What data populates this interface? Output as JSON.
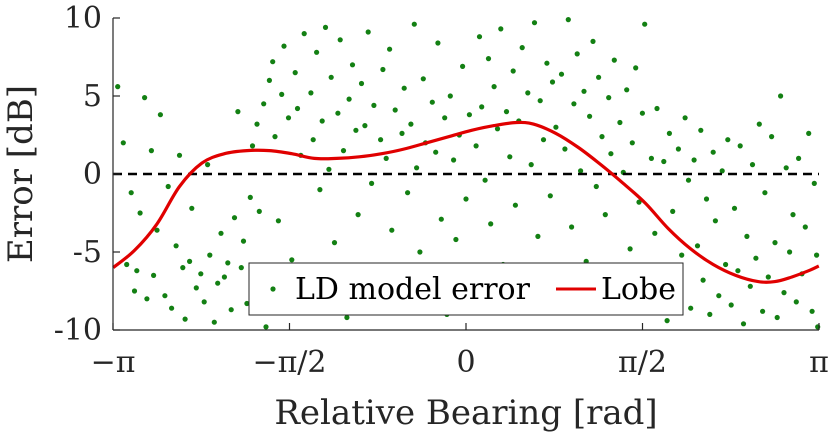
{
  "chart_data": {
    "type": "scatter",
    "xlabel": "Relative Bearing [rad]",
    "ylabel": "Error [dB]",
    "xlim": [
      -3.14159,
      3.14159
    ],
    "ylim": [
      -10,
      10
    ],
    "x_ticks": [
      {
        "value": -3.14159,
        "label": "−π"
      },
      {
        "value": -1.5708,
        "label": "−π/2"
      },
      {
        "value": 0,
        "label": "0"
      },
      {
        "value": 1.5708,
        "label": "π/2"
      },
      {
        "value": 3.14159,
        "label": "π"
      }
    ],
    "y_ticks": [
      {
        "value": 10,
        "label": "10"
      },
      {
        "value": 5,
        "label": "5"
      },
      {
        "value": 0,
        "label": "0"
      },
      {
        "value": -5,
        "label": "-5"
      },
      {
        "value": -10,
        "label": "-10"
      }
    ],
    "legend": {
      "position": "bottom-center",
      "entries": [
        {
          "label": "LD model error",
          "kind": "marker",
          "color": "#138013"
        },
        {
          "label": "Lobe",
          "kind": "line",
          "color": "#e00000"
        }
      ]
    },
    "reference_line": {
      "y": 0,
      "style": "dashed",
      "color": "#000000"
    },
    "series": [
      {
        "name": "LD model error",
        "kind": "scatter",
        "color": "#138013",
        "points": [
          [
            -3.1,
            5.6
          ],
          [
            -3.05,
            2.0
          ],
          [
            -3.02,
            -5.8
          ],
          [
            -2.98,
            -1.2
          ],
          [
            -2.95,
            -7.5
          ],
          [
            -2.93,
            -6.2
          ],
          [
            -2.9,
            -2.5
          ],
          [
            -2.86,
            4.9
          ],
          [
            -2.84,
            -8.0
          ],
          [
            -2.8,
            1.5
          ],
          [
            -2.78,
            -6.5
          ],
          [
            -2.75,
            -3.6
          ],
          [
            -2.72,
            3.8
          ],
          [
            -2.68,
            -7.8
          ],
          [
            -2.65,
            -0.8
          ],
          [
            -2.62,
            -8.6
          ],
          [
            -2.58,
            -4.6
          ],
          [
            -2.55,
            1.2
          ],
          [
            -2.52,
            -6.0
          ],
          [
            -2.5,
            -9.3
          ],
          [
            -2.46,
            -5.6
          ],
          [
            -2.44,
            -2.2
          ],
          [
            -2.4,
            -7.3
          ],
          [
            -2.36,
            -6.4
          ],
          [
            -2.33,
            -8.2
          ],
          [
            -2.3,
            0.6
          ],
          [
            -2.28,
            -5.2
          ],
          [
            -2.24,
            -9.5
          ],
          [
            -2.21,
            -7.0
          ],
          [
            -2.18,
            -3.8
          ],
          [
            -2.15,
            -6.6
          ],
          [
            -2.12,
            -5.7
          ],
          [
            -2.09,
            -8.7
          ],
          [
            -2.06,
            -2.8
          ],
          [
            -2.03,
            4.0
          ],
          [
            -2.0,
            -6.0
          ],
          [
            -1.98,
            -4.3
          ],
          [
            -1.95,
            -8.3
          ],
          [
            -1.92,
            -1.5
          ],
          [
            -1.9,
            1.8
          ],
          [
            -1.86,
            3.2
          ],
          [
            -1.84,
            -2.4
          ],
          [
            -1.8,
            4.5
          ],
          [
            -1.78,
            -9.8
          ],
          [
            -1.75,
            6.0
          ],
          [
            -1.72,
            7.2
          ],
          [
            -1.7,
            2.4
          ],
          [
            -1.67,
            -3.0
          ],
          [
            -1.64,
            5.1
          ],
          [
            -1.62,
            8.2
          ],
          [
            -1.58,
            3.6
          ],
          [
            -1.55,
            -5.5
          ],
          [
            -1.52,
            6.5
          ],
          [
            -1.5,
            4.2
          ],
          [
            -1.47,
            1.2
          ],
          [
            -1.44,
            9.0
          ],
          [
            -1.42,
            -7.2
          ],
          [
            -1.38,
            5.2
          ],
          [
            -1.36,
            2.2
          ],
          [
            -1.33,
            7.8
          ],
          [
            -1.3,
            -1.0
          ],
          [
            -1.28,
            3.4
          ],
          [
            -1.25,
            9.4
          ],
          [
            -1.22,
            0.3
          ],
          [
            -1.2,
            6.2
          ],
          [
            -1.17,
            -4.4
          ],
          [
            -1.14,
            3.9
          ],
          [
            -1.12,
            8.6
          ],
          [
            -1.09,
            1.5
          ],
          [
            -1.06,
            -9.2
          ],
          [
            -1.04,
            4.8
          ],
          [
            -1.01,
            7.0
          ],
          [
            -0.98,
            2.8
          ],
          [
            -0.96,
            -2.6
          ],
          [
            -0.93,
            5.8
          ],
          [
            -0.9,
            3.1
          ],
          [
            -0.87,
            9.1
          ],
          [
            -0.84,
            -0.6
          ],
          [
            -0.82,
            4.4
          ],
          [
            -0.79,
            -6.6
          ],
          [
            -0.76,
            2.2
          ],
          [
            -0.74,
            6.7
          ],
          [
            -0.71,
            1.0
          ],
          [
            -0.68,
            8.0
          ],
          [
            -0.66,
            -3.6
          ],
          [
            -0.63,
            4.1
          ],
          [
            -0.6,
            -8.4
          ],
          [
            -0.57,
            2.6
          ],
          [
            -0.55,
            5.5
          ],
          [
            -0.52,
            -1.2
          ],
          [
            -0.49,
            3.2
          ],
          [
            -0.46,
            9.6
          ],
          [
            -0.44,
            0.4
          ],
          [
            -0.41,
            -5.0
          ],
          [
            -0.38,
            6.1
          ],
          [
            -0.36,
            2.0
          ],
          [
            -0.33,
            -7.6
          ],
          [
            -0.3,
            4.6
          ],
          [
            -0.27,
            1.4
          ],
          [
            -0.25,
            8.4
          ],
          [
            -0.22,
            -2.9
          ],
          [
            -0.19,
            3.6
          ],
          [
            -0.17,
            -9.0
          ],
          [
            -0.14,
            5.0
          ],
          [
            -0.11,
            0.9
          ],
          [
            -0.09,
            -4.2
          ],
          [
            -0.06,
            2.5
          ],
          [
            -0.03,
            6.9
          ],
          [
            0.0,
            -1.6
          ],
          [
            0.03,
            3.8
          ],
          [
            0.06,
            -6.4
          ],
          [
            0.09,
            1.8
          ],
          [
            0.12,
            8.8
          ],
          [
            0.14,
            4.3
          ],
          [
            0.17,
            -0.4
          ],
          [
            0.2,
            7.4
          ],
          [
            0.22,
            -3.2
          ],
          [
            0.25,
            5.6
          ],
          [
            0.28,
            2.9
          ],
          [
            0.31,
            9.3
          ],
          [
            0.33,
            -5.8
          ],
          [
            0.36,
            4.0
          ],
          [
            0.39,
            1.1
          ],
          [
            0.42,
            6.6
          ],
          [
            0.44,
            -2.0
          ],
          [
            0.47,
            3.4
          ],
          [
            0.5,
            8.1
          ],
          [
            0.53,
            -7.0
          ],
          [
            0.55,
            5.2
          ],
          [
            0.58,
            0.6
          ],
          [
            0.61,
            9.7
          ],
          [
            0.64,
            -4.0
          ],
          [
            0.66,
            4.7
          ],
          [
            0.69,
            2.2
          ],
          [
            0.72,
            7.1
          ],
          [
            0.75,
            -1.4
          ],
          [
            0.77,
            5.9
          ],
          [
            0.8,
            3.0
          ],
          [
            0.83,
            -8.8
          ],
          [
            0.85,
            6.4
          ],
          [
            0.88,
            1.6
          ],
          [
            0.91,
            9.9
          ],
          [
            0.94,
            -3.4
          ],
          [
            0.96,
            4.5
          ],
          [
            0.99,
            7.7
          ],
          [
            1.02,
            0.2
          ],
          [
            1.05,
            5.3
          ],
          [
            1.07,
            -5.6
          ],
          [
            1.1,
            3.7
          ],
          [
            1.13,
            8.5
          ],
          [
            1.16,
            -0.8
          ],
          [
            1.18,
            6.2
          ],
          [
            1.21,
            2.4
          ],
          [
            1.24,
            -2.6
          ],
          [
            1.27,
            4.9
          ],
          [
            1.29,
            1.3
          ],
          [
            1.32,
            7.3
          ],
          [
            1.35,
            -6.8
          ],
          [
            1.37,
            3.3
          ],
          [
            1.4,
            0.1
          ],
          [
            1.43,
            5.4
          ],
          [
            1.46,
            -4.8
          ],
          [
            1.48,
            2.0
          ],
          [
            1.51,
            6.8
          ],
          [
            1.54,
            -1.8
          ],
          [
            1.57,
            3.9
          ],
          [
            1.59,
            9.6
          ],
          [
            1.62,
            -8.2
          ],
          [
            1.65,
            1.0
          ],
          [
            1.68,
            -3.8
          ],
          [
            1.7,
            4.2
          ],
          [
            1.73,
            -6.0
          ],
          [
            1.76,
            0.8
          ],
          [
            1.79,
            -9.4
          ],
          [
            1.81,
            2.6
          ],
          [
            1.84,
            -2.4
          ],
          [
            1.87,
            -7.4
          ],
          [
            1.89,
            1.6
          ],
          [
            1.92,
            -5.2
          ],
          [
            1.95,
            3.6
          ],
          [
            1.98,
            -0.4
          ],
          [
            2.0,
            -8.6
          ],
          [
            2.03,
            0.9
          ],
          [
            2.06,
            -4.6
          ],
          [
            2.09,
            2.8
          ],
          [
            2.11,
            -6.8
          ],
          [
            2.14,
            -1.6
          ],
          [
            2.17,
            -9.0
          ],
          [
            2.2,
            1.4
          ],
          [
            2.22,
            -3.0
          ],
          [
            2.25,
            -7.8
          ],
          [
            2.28,
            0.2
          ],
          [
            2.31,
            -5.8
          ],
          [
            2.33,
            2.2
          ],
          [
            2.36,
            -8.4
          ],
          [
            2.39,
            -2.2
          ],
          [
            2.42,
            -6.2
          ],
          [
            2.44,
            1.8
          ],
          [
            2.47,
            -9.6
          ],
          [
            2.5,
            -4.0
          ],
          [
            2.53,
            -7.2
          ],
          [
            2.55,
            0.6
          ],
          [
            2.58,
            -5.4
          ],
          [
            2.61,
            3.2
          ],
          [
            2.64,
            -8.8
          ],
          [
            2.66,
            -1.2
          ],
          [
            2.69,
            -6.6
          ],
          [
            2.72,
            2.4
          ],
          [
            2.75,
            -4.4
          ],
          [
            2.77,
            -9.2
          ],
          [
            2.8,
            5.0
          ],
          [
            2.83,
            -7.6
          ],
          [
            2.85,
            0.4
          ],
          [
            2.88,
            -5.0
          ],
          [
            2.91,
            -2.6
          ],
          [
            2.94,
            -8.2
          ],
          [
            2.96,
            1.0
          ],
          [
            2.99,
            -6.4
          ],
          [
            3.02,
            -3.4
          ],
          [
            3.05,
            2.6
          ],
          [
            3.08,
            -8.8
          ],
          [
            3.1,
            -0.6
          ],
          [
            3.12,
            -5.2
          ],
          [
            3.13,
            -9.8
          ]
        ]
      },
      {
        "name": "Lobe",
        "kind": "line",
        "color": "#e00000",
        "points": [
          [
            -3.14,
            -6.0
          ],
          [
            -2.95,
            -4.9
          ],
          [
            -2.75,
            -3.2
          ],
          [
            -2.55,
            -0.8
          ],
          [
            -2.35,
            0.7
          ],
          [
            -2.15,
            1.3
          ],
          [
            -1.95,
            1.5
          ],
          [
            -1.75,
            1.5
          ],
          [
            -1.55,
            1.3
          ],
          [
            -1.35,
            1.0
          ],
          [
            -1.15,
            1.0
          ],
          [
            -0.95,
            1.1
          ],
          [
            -0.75,
            1.3
          ],
          [
            -0.55,
            1.6
          ],
          [
            -0.35,
            2.0
          ],
          [
            -0.15,
            2.4
          ],
          [
            0.05,
            2.8
          ],
          [
            0.25,
            3.1
          ],
          [
            0.45,
            3.3
          ],
          [
            0.6,
            3.2
          ],
          [
            0.8,
            2.6
          ],
          [
            1.0,
            1.7
          ],
          [
            1.2,
            0.6
          ],
          [
            1.4,
            -0.6
          ],
          [
            1.6,
            -1.9
          ],
          [
            1.8,
            -3.5
          ],
          [
            2.0,
            -4.8
          ],
          [
            2.2,
            -5.8
          ],
          [
            2.4,
            -6.5
          ],
          [
            2.6,
            -6.9
          ],
          [
            2.75,
            -6.9
          ],
          [
            2.9,
            -6.6
          ],
          [
            3.05,
            -6.2
          ],
          [
            3.14,
            -5.9
          ]
        ]
      }
    ]
  }
}
